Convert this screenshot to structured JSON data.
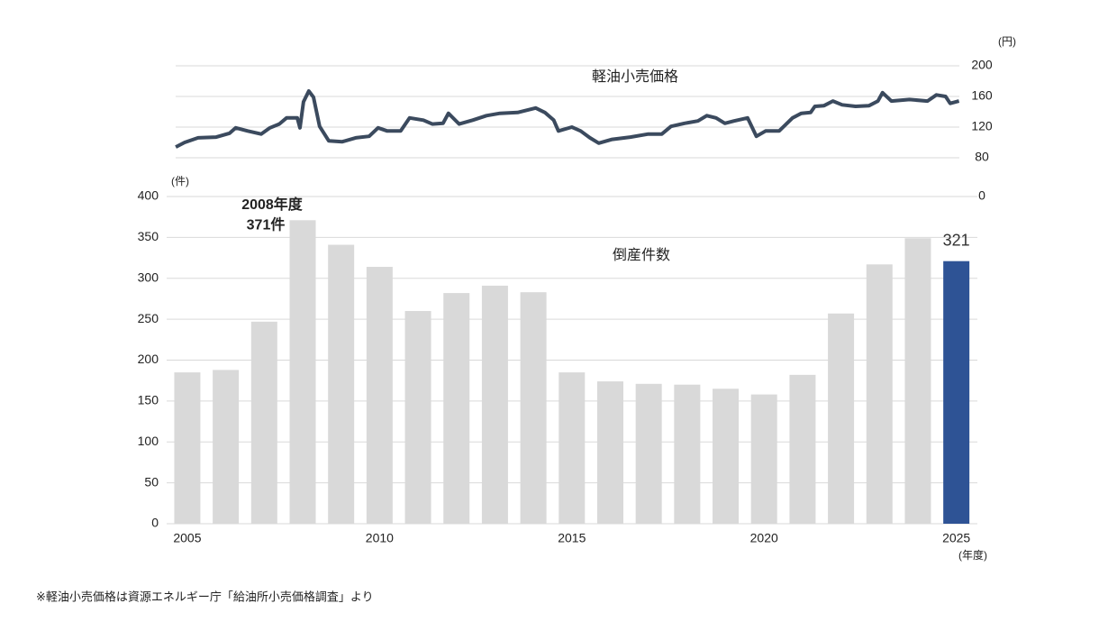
{
  "chart_data": [
    {
      "type": "line",
      "title": "軽油小売価格",
      "y_unit": "(円)",
      "color": "#3b4a5e",
      "xlim": [
        2004.5,
        2025.5
      ],
      "ylim": [
        80,
        200
      ],
      "yticks": [
        0,
        80,
        120,
        160,
        200
      ],
      "axis_break": true,
      "grid": true,
      "x": [
        2004.7,
        2004.93,
        2005.28,
        2005.75,
        2006.1,
        2006.26,
        2006.57,
        2006.92,
        2007.15,
        2007.39,
        2007.58,
        2007.86,
        2007.93,
        2008.02,
        2008.16,
        2008.28,
        2008.44,
        2008.68,
        2009.03,
        2009.38,
        2009.73,
        2009.96,
        2010.2,
        2010.55,
        2010.78,
        2011.14,
        2011.37,
        2011.65,
        2011.79,
        2012.07,
        2012.42,
        2012.78,
        2013.13,
        2013.59,
        2014.06,
        2014.3,
        2014.53,
        2014.65,
        2015.0,
        2015.23,
        2015.47,
        2015.7,
        2016.05,
        2016.52,
        2016.99,
        2017.34,
        2017.58,
        2017.93,
        2018.28,
        2018.51,
        2018.75,
        2018.98,
        2019.22,
        2019.57,
        2019.8,
        2020.04,
        2020.39,
        2020.74,
        2020.97,
        2021.21,
        2021.32,
        2021.56,
        2021.79,
        2022.03,
        2022.38,
        2022.73,
        2022.96,
        2023.08,
        2023.31,
        2023.78,
        2024.25,
        2024.48,
        2024.72,
        2024.84,
        2025.07
      ],
      "values": [
        94,
        100,
        106,
        107,
        112,
        119,
        115,
        111,
        119,
        124,
        132,
        132,
        119,
        153,
        167,
        159,
        121,
        102,
        101,
        106,
        108,
        119,
        115,
        115,
        132,
        129,
        124,
        125,
        138,
        124,
        129,
        135,
        138,
        139,
        145,
        139,
        129,
        115,
        120,
        115,
        106,
        99,
        104,
        107,
        111,
        111,
        121,
        125,
        128,
        135,
        132,
        125,
        128,
        132,
        108,
        115,
        115,
        132,
        138,
        139,
        147,
        148,
        154,
        149,
        147,
        148,
        154,
        165,
        154,
        156,
        154,
        162,
        160,
        151,
        154
      ]
    },
    {
      "type": "bar",
      "title": "倒産件数",
      "y_unit": "(件)",
      "x_unit": "(年度)",
      "annotation": "2008年度",
      "categories": [
        "2005",
        null,
        null,
        null,
        null,
        "2010",
        null,
        null,
        null,
        null,
        "2015",
        null,
        null,
        null,
        null,
        "2020",
        null,
        null,
        null,
        null,
        "2025"
      ],
      "values": [
        185,
        188,
        247,
        371,
        341,
        314,
        260,
        282,
        291,
        283,
        185,
        174,
        171,
        170,
        165,
        158,
        182,
        257,
        317,
        349,
        321
      ],
      "value_labels": [
        null,
        null,
        null,
        "371件",
        null,
        null,
        null,
        null,
        null,
        null,
        null,
        null,
        null,
        null,
        null,
        null,
        null,
        null,
        null,
        null,
        "321"
      ],
      "colors": [
        "#d9d9d9",
        "#d9d9d9",
        "#d9d9d9",
        "#d9d9d9",
        "#d9d9d9",
        "#d9d9d9",
        "#d9d9d9",
        "#d9d9d9",
        "#d9d9d9",
        "#d9d9d9",
        "#d9d9d9",
        "#d9d9d9",
        "#d9d9d9",
        "#d9d9d9",
        "#d9d9d9",
        "#d9d9d9",
        "#d9d9d9",
        "#d9d9d9",
        "#d9d9d9",
        "#d9d9d9",
        "#2e5395"
      ],
      "ylim": [
        0,
        400
      ],
      "yticks": [
        0,
        50,
        100,
        150,
        200,
        250,
        300,
        350,
        400
      ],
      "grid": true
    },
    {
      "type": "note",
      "text": "※軽油小売価格は資源エネルギー庁「給油所小売価格調査」より"
    }
  ]
}
